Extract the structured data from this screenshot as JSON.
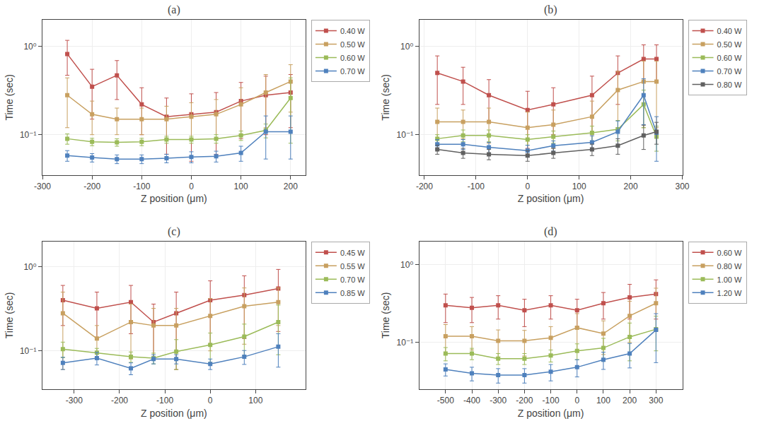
{
  "chart_data": [
    {
      "type": "line",
      "title": "(a)",
      "xlabel": "Z position (μm)",
      "ylabel": "Time (sec)",
      "x": [
        -250,
        -200,
        -150,
        -100,
        -50,
        0,
        50,
        100,
        150,
        200
      ],
      "series": [
        {
          "name": "0.40 W",
          "color": "#c0504d",
          "values": [
            0.82,
            0.35,
            0.47,
            0.22,
            0.16,
            0.17,
            0.18,
            0.24,
            0.28,
            0.3
          ],
          "yerr": [
            0.35,
            0.2,
            0.22,
            0.12,
            0.1,
            0.12,
            0.12,
            0.15,
            0.18,
            0.18
          ]
        },
        {
          "name": "0.50 W",
          "color": "#c8a060",
          "values": [
            0.28,
            0.17,
            0.15,
            0.15,
            0.15,
            0.16,
            0.17,
            0.22,
            0.3,
            0.4
          ],
          "yerr": [
            0.16,
            0.07,
            0.05,
            0.05,
            0.06,
            0.07,
            0.08,
            0.12,
            0.18,
            0.22
          ]
        },
        {
          "name": "0.60 W",
          "color": "#9bbb59",
          "values": [
            0.09,
            0.083,
            0.082,
            0.083,
            0.088,
            0.088,
            0.09,
            0.098,
            0.112,
            0.26
          ],
          "yerr": [
            0.012,
            0.008,
            0.008,
            0.008,
            0.008,
            0.008,
            0.01,
            0.012,
            0.02,
            0.18
          ]
        },
        {
          "name": "0.70 W",
          "color": "#4f81bd",
          "values": [
            0.058,
            0.055,
            0.053,
            0.053,
            0.054,
            0.056,
            0.057,
            0.062,
            0.108,
            0.108
          ],
          "yerr": [
            0.008,
            0.006,
            0.006,
            0.006,
            0.006,
            0.008,
            0.008,
            0.012,
            0.055,
            0.055
          ]
        }
      ],
      "xlim": [
        -300,
        230
      ],
      "xticks": [
        -300,
        -200,
        -100,
        0,
        100,
        200
      ],
      "ylim": [
        0.035,
        2.0
      ],
      "yticks": [
        {
          "value": 0.1,
          "label": "10⁻¹"
        },
        {
          "value": 1,
          "label": "10⁰"
        }
      ],
      "log": "y",
      "grid": true,
      "legend": "upper right",
      "marker": "square"
    },
    {
      "type": "line",
      "title": "(b)",
      "xlabel": "Z position (μm)",
      "ylabel": "Time (sec)",
      "x": [
        -175,
        -125,
        -75,
        0,
        50,
        125,
        175,
        225,
        250
      ],
      "series": [
        {
          "name": "0.40 W",
          "color": "#c0504d",
          "values": [
            0.5,
            0.4,
            0.28,
            0.19,
            0.22,
            0.28,
            0.5,
            0.72,
            0.72
          ],
          "yerr": [
            0.28,
            0.18,
            0.14,
            0.12,
            0.12,
            0.18,
            0.28,
            0.32,
            0.32
          ]
        },
        {
          "name": "0.50 W",
          "color": "#c8a060",
          "values": [
            0.14,
            0.14,
            0.14,
            0.12,
            0.13,
            0.16,
            0.32,
            0.4,
            0.4
          ],
          "yerr": [
            0.06,
            0.05,
            0.06,
            0.06,
            0.06,
            0.08,
            0.2,
            0.28,
            0.28
          ]
        },
        {
          "name": "0.60 W",
          "color": "#9bbb59",
          "values": [
            0.09,
            0.098,
            0.098,
            0.088,
            0.095,
            0.105,
            0.115,
            0.22,
            0.095
          ],
          "yerr": [
            0.01,
            0.015,
            0.015,
            0.012,
            0.015,
            0.02,
            0.03,
            0.1,
            0.03
          ]
        },
        {
          "name": "0.70 W",
          "color": "#4f81bd",
          "values": [
            0.078,
            0.078,
            0.072,
            0.066,
            0.075,
            0.082,
            0.108,
            0.28,
            0.105
          ],
          "yerr": [
            0.01,
            0.01,
            0.01,
            0.01,
            0.01,
            0.015,
            0.035,
            0.15,
            0.055
          ]
        },
        {
          "name": "0.80 W",
          "color": "#606060",
          "values": [
            0.068,
            0.062,
            0.06,
            0.058,
            0.062,
            0.068,
            0.075,
            0.098,
            0.108
          ],
          "yerr": [
            0.008,
            0.008,
            0.008,
            0.008,
            0.008,
            0.01,
            0.015,
            0.03,
            0.03
          ]
        }
      ],
      "xlim": [
        -210,
        300
      ],
      "xticks": [
        -200,
        -100,
        0,
        100,
        200,
        300
      ],
      "ylim": [
        0.035,
        2.0
      ],
      "yticks": [
        {
          "value": 0.1,
          "label": "10⁻¹"
        },
        {
          "value": 1,
          "label": "10⁰"
        }
      ],
      "log": "y",
      "grid": true,
      "legend": "upper right",
      "marker": "square"
    },
    {
      "type": "line",
      "title": "(c)",
      "xlabel": "Z position (μm)",
      "ylabel": "Time (sec)",
      "x": [
        -325,
        -250,
        -175,
        -125,
        -75,
        0,
        75,
        150
      ],
      "series": [
        {
          "name": "0.45 W",
          "color": "#c0504d",
          "values": [
            0.4,
            0.32,
            0.38,
            0.22,
            0.28,
            0.4,
            0.46,
            0.55
          ],
          "yerr": [
            0.2,
            0.18,
            0.22,
            0.14,
            0.22,
            0.28,
            0.32,
            0.38
          ]
        },
        {
          "name": "0.55 W",
          "color": "#c8a060",
          "values": [
            0.28,
            0.14,
            0.22,
            0.2,
            0.2,
            0.26,
            0.34,
            0.38
          ],
          "yerr": [
            0.22,
            0.06,
            0.14,
            0.12,
            0.12,
            0.16,
            0.22,
            0.18
          ]
        },
        {
          "name": "0.70 W",
          "color": "#9bbb59",
          "values": [
            0.105,
            0.095,
            0.085,
            0.082,
            0.098,
            0.118,
            0.148,
            0.22
          ],
          "yerr": [
            0.022,
            0.012,
            0.012,
            0.012,
            0.038,
            0.045,
            0.06,
            0.13
          ]
        },
        {
          "name": "0.85 W",
          "color": "#4f81bd",
          "values": [
            0.072,
            0.082,
            0.062,
            0.08,
            0.08,
            0.07,
            0.085,
            0.112
          ],
          "yerr": [
            0.012,
            0.014,
            0.01,
            0.01,
            0.01,
            0.01,
            0.016,
            0.048
          ]
        }
      ],
      "xlim": [
        -370,
        210
      ],
      "xticks": [
        -300,
        -200,
        -100,
        0,
        100
      ],
      "ylim": [
        0.035,
        2.0
      ],
      "yticks": [
        {
          "value": 0.1,
          "label": "10⁻¹"
        },
        {
          "value": 1,
          "label": "10⁰"
        }
      ],
      "log": "y",
      "grid": true,
      "legend": "upper right",
      "marker": "square"
    },
    {
      "type": "line",
      "title": "(d)",
      "xlabel": "Z position (μm)",
      "ylabel": "Time (sec)",
      "x": [
        -500,
        -400,
        -300,
        -200,
        -100,
        0,
        100,
        200,
        300
      ],
      "series": [
        {
          "name": "0.60 W",
          "color": "#c0504d",
          "values": [
            0.3,
            0.28,
            0.3,
            0.26,
            0.3,
            0.26,
            0.32,
            0.38,
            0.42
          ],
          "yerr": [
            0.12,
            0.1,
            0.1,
            0.1,
            0.1,
            0.1,
            0.12,
            0.18,
            0.22
          ]
        },
        {
          "name": "0.80 W",
          "color": "#c8a060",
          "values": [
            0.12,
            0.12,
            0.105,
            0.105,
            0.115,
            0.155,
            0.13,
            0.22,
            0.32
          ],
          "yerr": [
            0.05,
            0.04,
            0.04,
            0.038,
            0.045,
            0.08,
            0.06,
            0.12,
            0.18
          ]
        },
        {
          "name": "1.00 W",
          "color": "#9bbb59",
          "values": [
            0.072,
            0.072,
            0.062,
            0.062,
            0.068,
            0.078,
            0.085,
            0.118,
            0.148
          ],
          "yerr": [
            0.014,
            0.012,
            0.01,
            0.01,
            0.012,
            0.018,
            0.028,
            0.06,
            0.07
          ]
        },
        {
          "name": "1.20 W",
          "color": "#4f81bd",
          "values": [
            0.045,
            0.04,
            0.038,
            0.038,
            0.042,
            0.048,
            0.06,
            0.072,
            0.145
          ],
          "yerr": [
            0.008,
            0.008,
            0.008,
            0.008,
            0.01,
            0.012,
            0.015,
            0.025,
            0.09
          ]
        }
      ],
      "xlim": [
        -600,
        400
      ],
      "xticks": [
        -500,
        -400,
        -300,
        -200,
        -100,
        0,
        100,
        200,
        300
      ],
      "ylim": [
        0.025,
        2.0
      ],
      "yticks": [
        {
          "value": 0.1,
          "label": "10⁻¹"
        },
        {
          "value": 1,
          "label": "10⁰"
        }
      ],
      "log": "y",
      "grid": true,
      "legend": "upper right",
      "marker": "square"
    }
  ]
}
